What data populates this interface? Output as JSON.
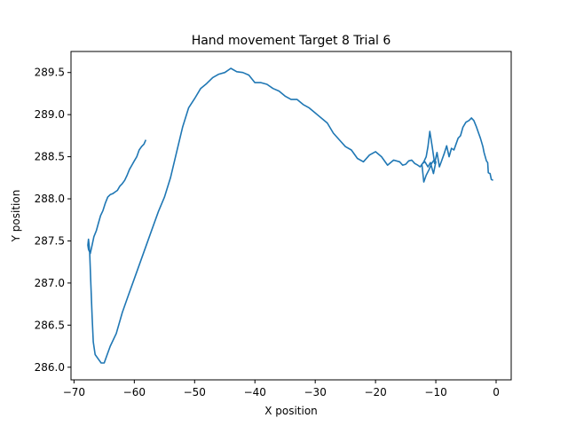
{
  "chart_data": {
    "type": "line",
    "title": "Hand movement Target 8 Trial 6",
    "xlabel": "X position",
    "ylabel": "Y position",
    "xlim": [
      -70.5,
      2.5
    ],
    "ylim": [
      285.85,
      289.75
    ],
    "xticks": [
      -70,
      -60,
      -50,
      -40,
      -30,
      -20,
      -10,
      0
    ],
    "yticks": [
      286.0,
      286.5,
      287.0,
      287.5,
      288.0,
      288.5,
      289.0,
      289.5
    ],
    "xtick_labels": [
      "−70",
      "−60",
      "−50",
      "−40",
      "−30",
      "−20",
      "−10",
      "0"
    ],
    "ytick_labels": [
      "286.0",
      "286.5",
      "287.0",
      "287.5",
      "288.0",
      "288.5",
      "289.0",
      "289.5"
    ],
    "grid": false,
    "line_color": "#1f77b4",
    "series": [
      {
        "x": [
          -0.5,
          -0.8,
          -1.0,
          -1.3,
          -1.4,
          -1.6,
          -2.0,
          -2.2,
          -2.6,
          -3.0,
          -3.3,
          -3.7,
          -4.1,
          -4.5,
          -5.0,
          -5.5,
          -5.9,
          -6.3,
          -6.7,
          -7.0,
          -7.4,
          -7.8,
          -8.2,
          -8.6,
          -9.0,
          -9.4,
          -9.8,
          -10.2,
          -10.6,
          -11.0,
          -11.3,
          -11.6,
          -12.0,
          -12.3,
          -12.0,
          -11.6,
          -11.1,
          -10.7,
          -10.3,
          -10.0,
          -10.4,
          -10.9,
          -11.3,
          -11.8,
          -12.2,
          -12.6,
          -13.0,
          -13.5,
          -14.0,
          -14.5,
          -15.0,
          -15.5,
          -16.0,
          -17.0,
          -18.0,
          -19.0,
          -20.0,
          -21.0,
          -22.0,
          -23.0,
          -24.0,
          -25.0,
          -26.0,
          -27.0,
          -28.0,
          -30.0,
          -31.0,
          -32.0,
          -33.0,
          -34.0,
          -35.0,
          -36.0,
          -37.0,
          -38.0,
          -39.0,
          -40.0,
          -41.0,
          -42.0,
          -43.0,
          -44.0,
          -45.0,
          -46.0,
          -47.0,
          -48.0,
          -49.0,
          -50.0,
          -51.0,
          -52.0,
          -53.0,
          -54.0,
          -55.0,
          -56.0,
          -57.0,
          -58.0,
          -59.0,
          -60.0,
          -61.0,
          -62.0,
          -63.0,
          -64.0,
          -64.5,
          -65.0,
          -65.5,
          -66.0,
          -66.5,
          -66.8,
          -67.0,
          -67.2,
          -67.4,
          -67.5,
          -67.6,
          -67.7,
          -67.6,
          -67.3,
          -67.0,
          -66.7,
          -66.3,
          -66.0,
          -65.6,
          -65.2,
          -64.8,
          -64.4,
          -64.0,
          -63.6,
          -63.2,
          -62.8,
          -62.4,
          -62.0,
          -61.6,
          -61.2,
          -60.8,
          -60.4,
          -60.0,
          -59.6,
          -59.2,
          -58.8,
          -58.4,
          -58.1
        ],
        "y": [
          288.22,
          288.23,
          288.3,
          288.31,
          288.43,
          288.45,
          288.55,
          288.62,
          288.72,
          288.8,
          288.86,
          288.93,
          288.96,
          288.93,
          288.91,
          288.85,
          288.75,
          288.72,
          288.64,
          288.58,
          288.6,
          288.5,
          288.63,
          288.54,
          288.46,
          288.38,
          288.55,
          288.42,
          288.62,
          288.8,
          288.62,
          288.5,
          288.44,
          288.41,
          288.2,
          288.28,
          288.35,
          288.42,
          288.46,
          288.44,
          288.3,
          288.43,
          288.38,
          288.44,
          288.42,
          288.38,
          288.4,
          288.42,
          288.46,
          288.45,
          288.41,
          288.4,
          288.44,
          288.46,
          288.4,
          288.5,
          288.56,
          288.52,
          288.44,
          288.48,
          288.58,
          288.62,
          288.7,
          288.78,
          288.9,
          289.02,
          289.08,
          289.12,
          289.18,
          289.18,
          289.22,
          289.28,
          289.31,
          289.36,
          289.38,
          289.38,
          289.47,
          289.5,
          289.51,
          289.55,
          289.5,
          289.48,
          289.44,
          289.37,
          289.31,
          289.19,
          289.08,
          288.85,
          288.55,
          288.25,
          288.02,
          287.85,
          287.65,
          287.45,
          287.25,
          287.05,
          286.85,
          286.65,
          286.4,
          286.25,
          286.15,
          286.05,
          286.05,
          286.1,
          286.15,
          286.3,
          286.6,
          286.98,
          287.35,
          287.45,
          287.52,
          287.45,
          287.4,
          287.35,
          287.45,
          287.55,
          287.62,
          287.7,
          287.8,
          287.86,
          287.95,
          288.02,
          288.05,
          288.06,
          288.08,
          288.1,
          288.15,
          288.18,
          288.22,
          288.28,
          288.35,
          288.4,
          288.45,
          288.5,
          288.58,
          288.62,
          288.65,
          288.7
        ]
      }
    ]
  }
}
